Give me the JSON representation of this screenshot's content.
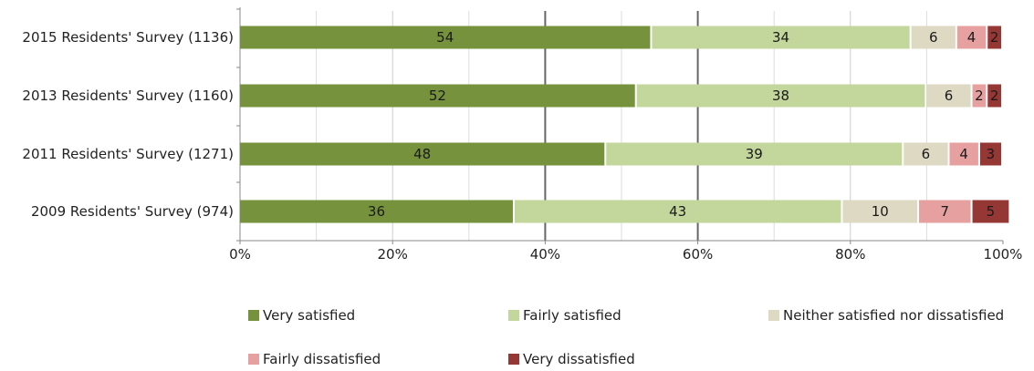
{
  "chart_data": {
    "type": "bar",
    "orientation": "horizontal",
    "stacked": true,
    "categories": [
      "2015 Residents' Survey (1136)",
      "2013 Residents' Survey (1160)",
      "2011 Residents' Survey (1271)",
      "2009 Residents' Survey (974)"
    ],
    "series": [
      {
        "name": "Very satisfied",
        "color": "#76923c",
        "label_color": "#1a1a1a",
        "values": [
          54,
          52,
          48,
          36
        ]
      },
      {
        "name": "Fairly satisfied",
        "color": "#c3d69b",
        "label_color": "#1a1a1a",
        "values": [
          34,
          38,
          39,
          43
        ]
      },
      {
        "name": "Neither satisfied nor dissatisfied",
        "color": "#ddd9c3",
        "label_color": "#1a1a1a",
        "values": [
          6,
          6,
          6,
          10
        ]
      },
      {
        "name": "Fairly dissatisfied",
        "color": "#e6a0a0",
        "label_color": "#1a1a1a",
        "values": [
          4,
          2,
          4,
          7
        ]
      },
      {
        "name": "Very dissatisfied",
        "color": "#953735",
        "label_color": "#1a1a1a",
        "values": [
          2,
          2,
          3,
          5
        ]
      }
    ],
    "xlim": [
      0,
      100
    ],
    "xticks": [
      "0%",
      "20%",
      "40%",
      "60%",
      "80%",
      "100%"
    ],
    "grid": true,
    "legend_position": "bottom"
  }
}
